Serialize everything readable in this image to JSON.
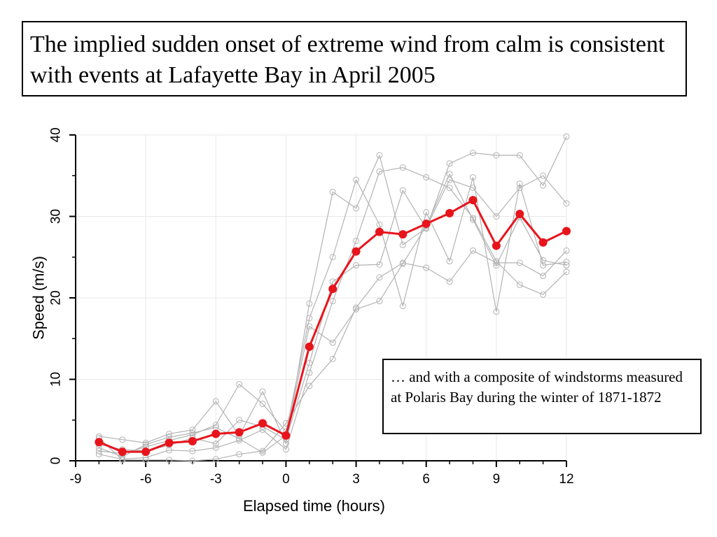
{
  "title": "The implied sudden onset of extreme wind from calm is consistent with events at Lafayette Bay in April 2005",
  "annotation": "… and with a composite of windstorms measured at Polaris Bay during the winter of 1871-1872",
  "colors": {
    "mean": "#e8141c",
    "gray": "#b3b3b3",
    "grid": "#e8e8e8"
  },
  "chart_data": {
    "type": "line",
    "xlabel": "Elapsed time (hours)",
    "ylabel": "Speed (m/s)",
    "xlim": [
      -9,
      12
    ],
    "ylim": [
      0,
      40
    ],
    "xticks": [
      -9,
      -6,
      -3,
      0,
      3,
      6,
      9,
      12
    ],
    "xtick_labels": [
      "-9",
      "-6",
      "-3",
      "0",
      "3",
      "6",
      "9",
      "12"
    ],
    "yticks": [
      0,
      10,
      20,
      30,
      40
    ],
    "ytick_labels": [
      "0",
      "10",
      "20",
      "30",
      "40"
    ],
    "grid": true,
    "x": [
      -8,
      -7,
      -6,
      -5,
      -4,
      -3,
      -2,
      -1,
      0,
      1,
      2,
      3,
      4,
      5,
      6,
      7,
      8,
      9,
      10,
      11,
      12
    ],
    "series": [
      {
        "role": "mean",
        "values": [
          2.3,
          1.1,
          1.1,
          2.2,
          2.4,
          3.3,
          3.5,
          4.6,
          3.1,
          14.0,
          21.1,
          25.7,
          28.1,
          27.8,
          29.1,
          30.4,
          32.0,
          26.4,
          30.3,
          26.8,
          28.2
        ]
      },
      {
        "role": "individual",
        "values": [
          3.0,
          2.6,
          2.2,
          3.3,
          3.8,
          7.3,
          3.1,
          8.5,
          2.1,
          19.3,
          33.0,
          31.0,
          37.5,
          26.5,
          28.6,
          34.5,
          33.5,
          30.0,
          33.5,
          35.0,
          31.6
        ]
      },
      {
        "role": "individual",
        "values": [
          1.2,
          0.9,
          1.7,
          2.5,
          3.2,
          4.4,
          9.4,
          7.0,
          3.6,
          17.5,
          25.0,
          34.5,
          29.0,
          19.0,
          30.5,
          24.5,
          34.8,
          18.3,
          34.0,
          24.0,
          24.4
        ]
      },
      {
        "role": "individual",
        "values": [
          2.0,
          1.4,
          1.2,
          1.9,
          2.8,
          2.1,
          5.0,
          4.2,
          2.6,
          12.0,
          22.0,
          24.0,
          24.1,
          33.2,
          28.5,
          36.5,
          37.8,
          37.5,
          37.5,
          33.8,
          39.8
        ]
      },
      {
        "role": "individual",
        "values": [
          0.8,
          0.2,
          0.4,
          1.3,
          1.2,
          1.6,
          2.5,
          3.8,
          1.4,
          10.8,
          19.6,
          27.0,
          35.5,
          36.0,
          34.8,
          33.5,
          29.8,
          24.5,
          21.6,
          20.4,
          23.2
        ]
      },
      {
        "role": "individual",
        "values": [
          2.8,
          0.1,
          0.1,
          0.1,
          0.0,
          0.2,
          0.8,
          1.2,
          4.6,
          9.2,
          12.5,
          18.8,
          22.5,
          24.3,
          23.7,
          22.0,
          25.8,
          24.3,
          24.3,
          22.7,
          25.8
        ]
      },
      {
        "role": "individual",
        "values": [
          1.6,
          0.5,
          2.0,
          2.9,
          3.4,
          4.1,
          2.7,
          1.0,
          3.1,
          16.5,
          14.5,
          18.6,
          19.6,
          24.2,
          28.8,
          35.2,
          29.6,
          24.0,
          29.9,
          24.6,
          24.0
        ]
      }
    ]
  }
}
